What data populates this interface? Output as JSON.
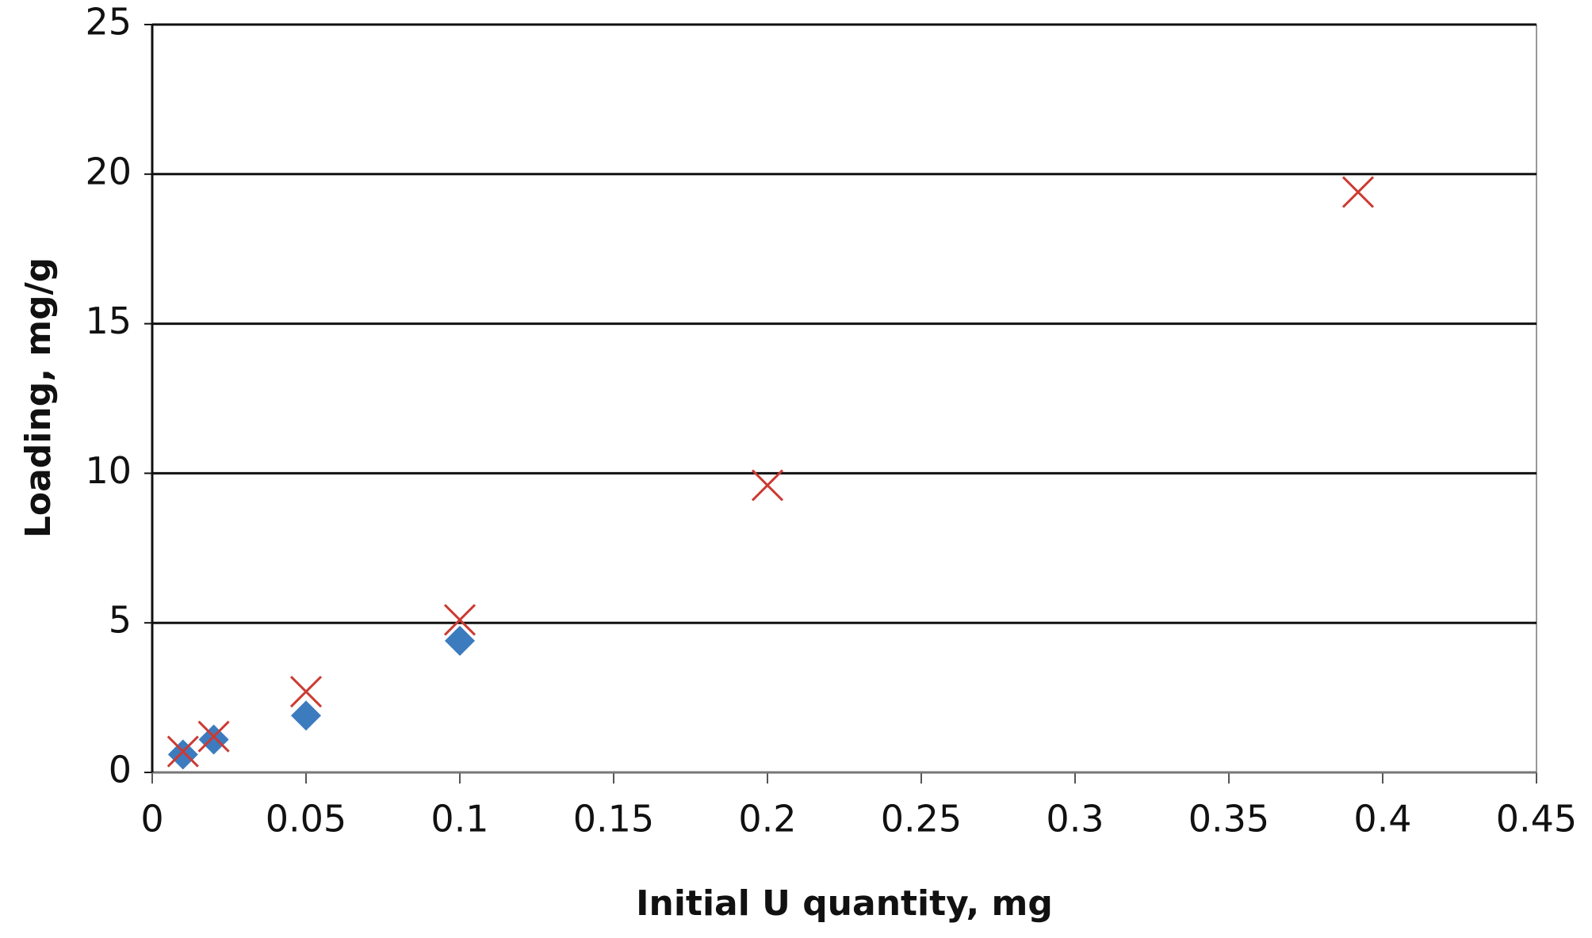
{
  "chart_data": {
    "type": "scatter",
    "xlabel": "Initial U quantity, mg",
    "ylabel": "Loading, mg/g",
    "xlim": [
      0,
      0.45
    ],
    "xticks": [
      0,
      0.05,
      0.1,
      0.15,
      0.2,
      0.25,
      0.3,
      0.35,
      0.4,
      0.45
    ],
    "ylim": [
      0,
      25
    ],
    "yticks": [
      0,
      5,
      10,
      15,
      20,
      25
    ],
    "grid": true,
    "series": [
      {
        "color": "#3d7bbf",
        "marker": "diamond",
        "x": [
          0.01,
          0.02,
          0.05,
          0.1
        ],
        "values": [
          0.6,
          1.1,
          1.9,
          4.4
        ]
      },
      {
        "color": "#cc3a32",
        "marker": "x",
        "x": [
          0.01,
          0.02,
          0.05,
          0.1,
          0.2,
          0.392
        ],
        "values": [
          0.7,
          1.2,
          2.7,
          5.1,
          9.6,
          19.4
        ]
      }
    ]
  }
}
